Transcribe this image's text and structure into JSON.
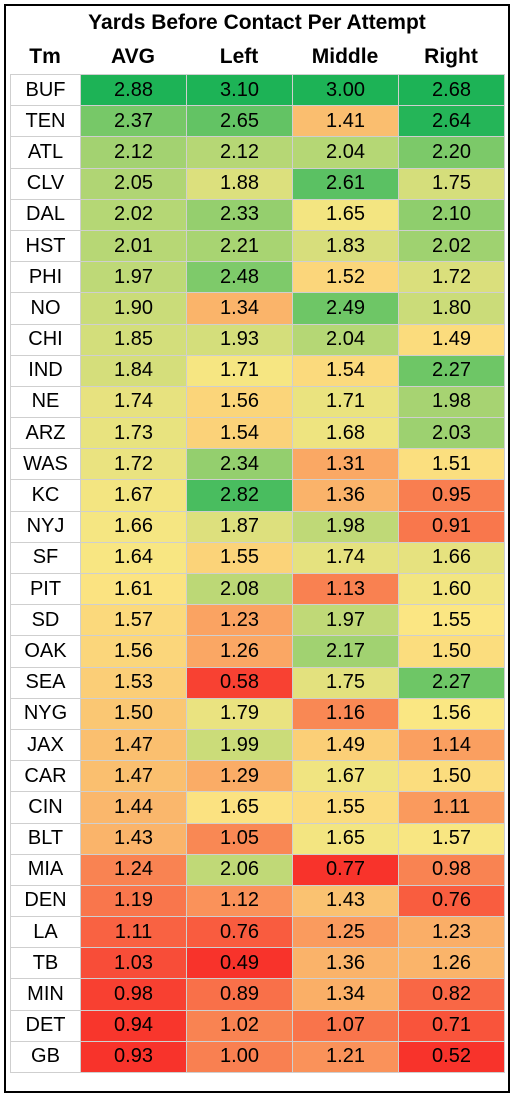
{
  "chart_data": {
    "type": "table",
    "title": "Yards Before Contact Per Attempt",
    "columns": [
      "Tm",
      "AVG",
      "Left",
      "Middle",
      "Right"
    ],
    "color_scale": {
      "low": "#f8332b",
      "mid": "#fbe783",
      "high": "#1db356"
    },
    "rows": [
      {
        "team": "BUF",
        "values": [
          "2.88",
          "3.10",
          "3.00",
          "2.68"
        ]
      },
      {
        "team": "TEN",
        "values": [
          "2.37",
          "2.65",
          "1.41",
          "2.64"
        ]
      },
      {
        "team": "ATL",
        "values": [
          "2.12",
          "2.12",
          "2.04",
          "2.20"
        ]
      },
      {
        "team": "CLV",
        "values": [
          "2.05",
          "1.88",
          "2.61",
          "1.75"
        ]
      },
      {
        "team": "DAL",
        "values": [
          "2.02",
          "2.33",
          "1.65",
          "2.10"
        ]
      },
      {
        "team": "HST",
        "values": [
          "2.01",
          "2.21",
          "1.83",
          "2.02"
        ]
      },
      {
        "team": "PHI",
        "values": [
          "1.97",
          "2.48",
          "1.52",
          "1.72"
        ]
      },
      {
        "team": "NO",
        "values": [
          "1.90",
          "1.34",
          "2.49",
          "1.80"
        ]
      },
      {
        "team": "CHI",
        "values": [
          "1.85",
          "1.93",
          "2.04",
          "1.49"
        ]
      },
      {
        "team": "IND",
        "values": [
          "1.84",
          "1.71",
          "1.54",
          "2.27"
        ]
      },
      {
        "team": "NE",
        "values": [
          "1.74",
          "1.56",
          "1.71",
          "1.98"
        ]
      },
      {
        "team": "ARZ",
        "values": [
          "1.73",
          "1.54",
          "1.68",
          "2.03"
        ]
      },
      {
        "team": "WAS",
        "values": [
          "1.72",
          "2.34",
          "1.31",
          "1.51"
        ]
      },
      {
        "team": "KC",
        "values": [
          "1.67",
          "2.82",
          "1.36",
          "0.95"
        ]
      },
      {
        "team": "NYJ",
        "values": [
          "1.66",
          "1.87",
          "1.98",
          "0.91"
        ]
      },
      {
        "team": "SF",
        "values": [
          "1.64",
          "1.55",
          "1.74",
          "1.66"
        ]
      },
      {
        "team": "PIT",
        "values": [
          "1.61",
          "2.08",
          "1.13",
          "1.60"
        ]
      },
      {
        "team": "SD",
        "values": [
          "1.57",
          "1.23",
          "1.97",
          "1.55"
        ]
      },
      {
        "team": "OAK",
        "values": [
          "1.56",
          "1.26",
          "2.17",
          "1.50"
        ]
      },
      {
        "team": "SEA",
        "values": [
          "1.53",
          "0.58",
          "1.75",
          "2.27"
        ]
      },
      {
        "team": "NYG",
        "values": [
          "1.50",
          "1.79",
          "1.16",
          "1.56"
        ]
      },
      {
        "team": "JAX",
        "values": [
          "1.47",
          "1.99",
          "1.49",
          "1.14"
        ]
      },
      {
        "team": "CAR",
        "values": [
          "1.47",
          "1.29",
          "1.67",
          "1.50"
        ]
      },
      {
        "team": "CIN",
        "values": [
          "1.44",
          "1.65",
          "1.55",
          "1.11"
        ]
      },
      {
        "team": "BLT",
        "values": [
          "1.43",
          "1.05",
          "1.65",
          "1.57"
        ]
      },
      {
        "team": "MIA",
        "values": [
          "1.24",
          "2.06",
          "0.77",
          "0.98"
        ]
      },
      {
        "team": "DEN",
        "values": [
          "1.19",
          "1.12",
          "1.43",
          "0.76"
        ]
      },
      {
        "team": "LA",
        "values": [
          "1.11",
          "0.76",
          "1.25",
          "1.23"
        ]
      },
      {
        "team": "TB",
        "values": [
          "1.03",
          "0.49",
          "1.36",
          "1.26"
        ]
      },
      {
        "team": "MIN",
        "values": [
          "0.98",
          "0.89",
          "1.34",
          "0.82"
        ]
      },
      {
        "team": "DET",
        "values": [
          "0.94",
          "1.02",
          "1.07",
          "0.71"
        ]
      },
      {
        "team": "GB",
        "values": [
          "0.93",
          "1.00",
          "1.21",
          "0.52"
        ]
      }
    ]
  }
}
